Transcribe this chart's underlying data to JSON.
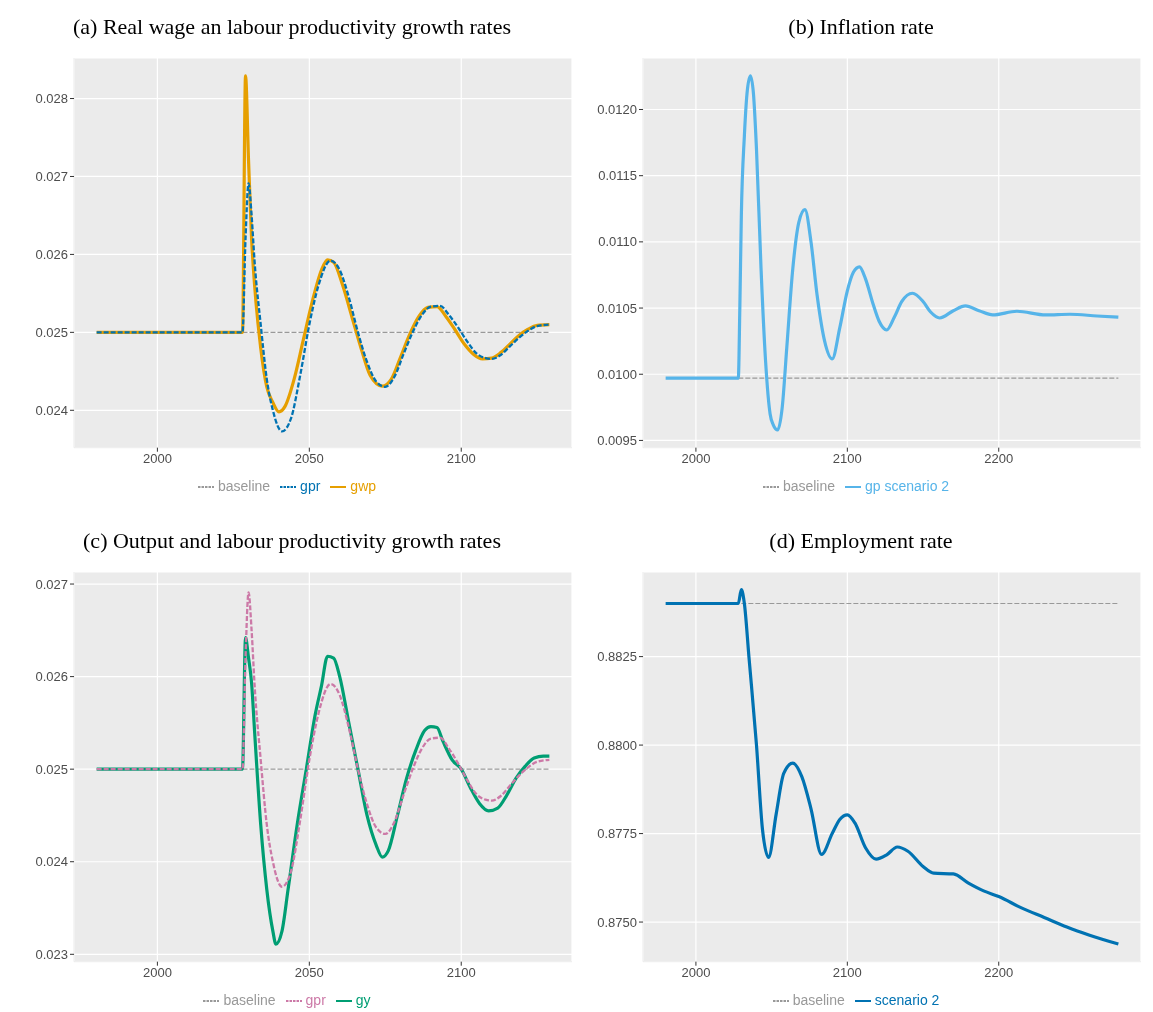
{
  "chart_data": [
    {
      "type": "line",
      "title": "(a) Real wage an labour productivity growth rates",
      "xlim": [
        1972.55,
        2136.45
      ],
      "xticks": [
        2000,
        2050,
        2100
      ],
      "ylim": [
        0.02352,
        0.02852
      ],
      "yticks": [
        0.024,
        0.025,
        0.026,
        0.027,
        0.028
      ],
      "grid": true,
      "legend": "bottom",
      "marker": "none",
      "series": [
        {
          "name": "baseline",
          "color": "#999999",
          "line_style": "dashed",
          "x": [
            2028,
            2129
          ],
          "values": [
            0.025,
            0.025
          ]
        },
        {
          "name": "gpr",
          "color": "#0072b2",
          "line_style": "dashed",
          "x": [
            1980,
            2028,
            2029,
            2030,
            2031,
            2032,
            2034,
            2036,
            2038,
            2041,
            2044,
            2047,
            2050,
            2053,
            2057,
            2060,
            2063,
            2066,
            2069,
            2072,
            2075,
            2078,
            2081,
            2084,
            2087,
            2090,
            2093,
            2096,
            2099,
            2102,
            2105,
            2108,
            2110,
            2113,
            2116,
            2119,
            2122,
            2125,
            2129
          ],
          "values": [
            0.025,
            0.025,
            0.0262,
            0.02691,
            0.0265,
            0.0259,
            0.0251,
            0.0244,
            0.024,
            0.02373,
            0.0239,
            0.02445,
            0.0251,
            0.0256,
            0.02592,
            0.0258,
            0.02545,
            0.025,
            0.02462,
            0.02437,
            0.0243,
            0.02443,
            0.02472,
            0.025,
            0.02522,
            0.02533,
            0.02534,
            0.02522,
            0.02506,
            0.02488,
            0.02473,
            0.02467,
            0.02466,
            0.02471,
            0.02482,
            0.02493,
            0.02502,
            0.02508,
            0.0251
          ]
        },
        {
          "name": "gwp",
          "color": "#e69f00",
          "line_style": "solid",
          "x": [
            1980,
            2028,
            2029,
            2030,
            2031,
            2032,
            2034,
            2036,
            2038,
            2040,
            2042,
            2045,
            2048,
            2051,
            2054,
            2056,
            2058,
            2061,
            2064,
            2067,
            2070,
            2074,
            2077,
            2080,
            2083,
            2086,
            2089,
            2092,
            2095,
            2098,
            2101,
            2104,
            2107,
            2110,
            2113,
            2116,
            2119,
            2122,
            2125,
            2129
          ],
          "values": [
            0.025,
            0.025,
            0.02829,
            0.0272,
            0.0262,
            0.0256,
            0.0248,
            0.0243,
            0.0241,
            0.02398,
            0.02405,
            0.0244,
            0.0249,
            0.0254,
            0.0258,
            0.02593,
            0.0259,
            0.0256,
            0.0252,
            0.0248,
            0.02445,
            0.02431,
            0.0244,
            0.02468,
            0.02497,
            0.0252,
            0.02532,
            0.02533,
            0.0252,
            0.02503,
            0.02485,
            0.02472,
            0.02466,
            0.02467,
            0.02474,
            0.02485,
            0.02496,
            0.02504,
            0.02509,
            0.0251
          ]
        }
      ]
    },
    {
      "type": "line",
      "title": "(b) Inflation rate",
      "xlim": [
        1965.05,
        2293.95
      ],
      "xticks": [
        2000,
        2100,
        2200
      ],
      "ylim": [
        0.009445,
        0.012389
      ],
      "yticks": [
        0.0095,
        {
          "value": 0.01,
          "label": "0.0100"
        },
        0.0105,
        {
          "value": 0.011,
          "label": "0.0110"
        },
        0.0115,
        {
          "value": 0.012,
          "label": "0.0120"
        }
      ],
      "grid": true,
      "legend": "bottom",
      "marker": "none",
      "series": [
        {
          "name": "baseline",
          "color": "#999999",
          "line_style": "dashed",
          "x": [
            2028,
            2279
          ],
          "values": [
            0.00997,
            0.00997
          ]
        },
        {
          "name": "gp scenario 2",
          "color": "#56b4e9",
          "line_style": "solid",
          "x": [
            1980,
            2028,
            2029,
            2030,
            2032,
            2034,
            2036,
            2038,
            2040,
            2043,
            2046,
            2049,
            2051,
            2054,
            2057,
            2060,
            2064,
            2068,
            2072,
            2076,
            2080,
            2085,
            2090,
            2095,
            2100,
            2104,
            2108,
            2112,
            2117,
            2121,
            2126,
            2131,
            2136,
            2143,
            2150,
            2155,
            2161,
            2170,
            2178,
            2187,
            2196,
            2212,
            2231,
            2247,
            2265,
            2279
          ],
          "values": [
            0.00997,
            0.00997,
            0.0105,
            0.0112,
            0.0118,
            0.01215,
            0.012255,
            0.01212,
            0.0117,
            0.0108,
            0.0101,
            0.0097,
            0.00962,
            0.009579,
            0.00975,
            0.0102,
            0.0108,
            0.01115,
            0.011243,
            0.011,
            0.0106,
            0.01025,
            0.010116,
            0.01035,
            0.01063,
            0.01077,
            0.010811,
            0.01072,
            0.01053,
            0.0104,
            0.010334,
            0.01043,
            0.01055,
            0.010612,
            0.01055,
            0.01047,
            0.010425,
            0.01048,
            0.010516,
            0.01048,
            0.010448,
            0.010476,
            0.010448,
            0.010453,
            0.01044,
            0.010431
          ]
        }
      ]
    },
    {
      "type": "line",
      "title": "(c) Output and labour productivity growth rates",
      "xlim": [
        1972.55,
        2136.45
      ],
      "xticks": [
        2000,
        2050,
        2100
      ],
      "ylim": [
        0.02292,
        0.02713
      ],
      "yticks": [
        0.023,
        0.024,
        0.025,
        0.026,
        0.027
      ],
      "grid": true,
      "legend": "bottom",
      "marker": "none",
      "series": [
        {
          "name": "baseline",
          "color": "#999999",
          "line_style": "dashed",
          "x": [
            2028,
            2129
          ],
          "values": [
            0.025,
            0.025
          ]
        },
        {
          "name": "gpr",
          "color": "#cc79a7",
          "line_style": "dashed",
          "x": [
            1980,
            2028,
            2029,
            2030,
            2031,
            2032,
            2034,
            2036,
            2038,
            2041,
            2044,
            2047,
            2050,
            2053,
            2057,
            2060,
            2063,
            2066,
            2069,
            2072,
            2075,
            2078,
            2081,
            2084,
            2087,
            2090,
            2093,
            2096,
            2099,
            2102,
            2105,
            2108,
            2110,
            2113,
            2116,
            2119,
            2122,
            2125,
            2129
          ],
          "values": [
            0.025,
            0.025,
            0.0262,
            0.02691,
            0.0265,
            0.0259,
            0.0251,
            0.0244,
            0.024,
            0.02373,
            0.0239,
            0.02445,
            0.0251,
            0.0256,
            0.02592,
            0.0258,
            0.02545,
            0.025,
            0.02462,
            0.02437,
            0.0243,
            0.02443,
            0.02472,
            0.025,
            0.02522,
            0.02533,
            0.02534,
            0.02522,
            0.02506,
            0.02488,
            0.02473,
            0.02467,
            0.02466,
            0.02471,
            0.02482,
            0.02493,
            0.02502,
            0.02508,
            0.0251
          ]
        },
        {
          "name": "gy",
          "color": "#009e73",
          "line_style": "solid",
          "x": [
            1980,
            2028,
            2029,
            2030,
            2031,
            2032,
            2034,
            2036,
            2038,
            2039,
            2041,
            2043,
            2046,
            2049,
            2052,
            2054,
            2056,
            2058,
            2060,
            2063,
            2066,
            2069,
            2072,
            2074,
            2076,
            2079,
            2082,
            2085,
            2088,
            2090,
            2092,
            2094,
            2097,
            2100,
            2103,
            2106,
            2109,
            2112,
            2115,
            2118,
            2121,
            2124,
            2127,
            2129
          ],
          "values": [
            0.025,
            0.025,
            0.02642,
            0.0262,
            0.02593,
            0.0254,
            0.0244,
            0.0237,
            0.02325,
            0.02311,
            0.02325,
            0.0237,
            0.0244,
            0.025,
            0.0256,
            0.0259,
            0.02622,
            0.0262,
            0.026,
            0.0255,
            0.025,
            0.0245,
            0.02418,
            0.02405,
            0.02412,
            0.0245,
            0.0249,
            0.0252,
            0.02542,
            0.02546,
            0.02545,
            0.0253,
            0.0251,
            0.025,
            0.0248,
            0.02463,
            0.02455,
            0.02458,
            0.02472,
            0.0249,
            0.02503,
            0.02512,
            0.02514,
            0.02514
          ]
        }
      ]
    },
    {
      "type": "line",
      "title": "(d) Employment rate",
      "xlim": [
        1965.05,
        2293.95
      ],
      "xticks": [
        2000,
        2100,
        2200
      ],
      "ylim": [
        0.87388,
        0.88489
      ],
      "yticks": [
        {
          "value": 0.875,
          "label": "0.8750"
        },
        0.8775,
        {
          "value": 0.88,
          "label": "0.8800"
        },
        0.8825
      ],
      "grid": true,
      "legend": "bottom",
      "marker": "none",
      "series": [
        {
          "name": "baseline",
          "color": "#999999",
          "line_style": "dashed",
          "x": [
            2030,
            2279
          ],
          "values": [
            0.884,
            0.884
          ]
        },
        {
          "name": "scenario 2",
          "color": "#0072b2",
          "line_style": "solid",
          "x": [
            1980,
            2028,
            2030,
            2032,
            2035,
            2040,
            2044,
            2048,
            2053,
            2058,
            2064,
            2070,
            2076,
            2083,
            2090,
            2095,
            2100,
            2105,
            2112,
            2119,
            2126,
            2133,
            2140,
            2150,
            2157,
            2170,
            2180,
            2190,
            2200,
            2215,
            2230,
            2245,
            2260,
            2279
          ],
          "values": [
            0.884,
            0.884,
            0.88439,
            0.884,
            0.8825,
            0.88,
            0.8776,
            0.87683,
            0.87805,
            0.8792,
            0.87949,
            0.8791,
            0.8782,
            0.87691,
            0.8775,
            0.8779,
            0.87803,
            0.8778,
            0.8771,
            0.87678,
            0.8769,
            0.87712,
            0.877,
            0.87657,
            0.87638,
            0.87636,
            0.8761,
            0.87588,
            0.87572,
            0.8754,
            0.87513,
            0.87486,
            0.87463,
            0.87438
          ]
        }
      ]
    }
  ]
}
